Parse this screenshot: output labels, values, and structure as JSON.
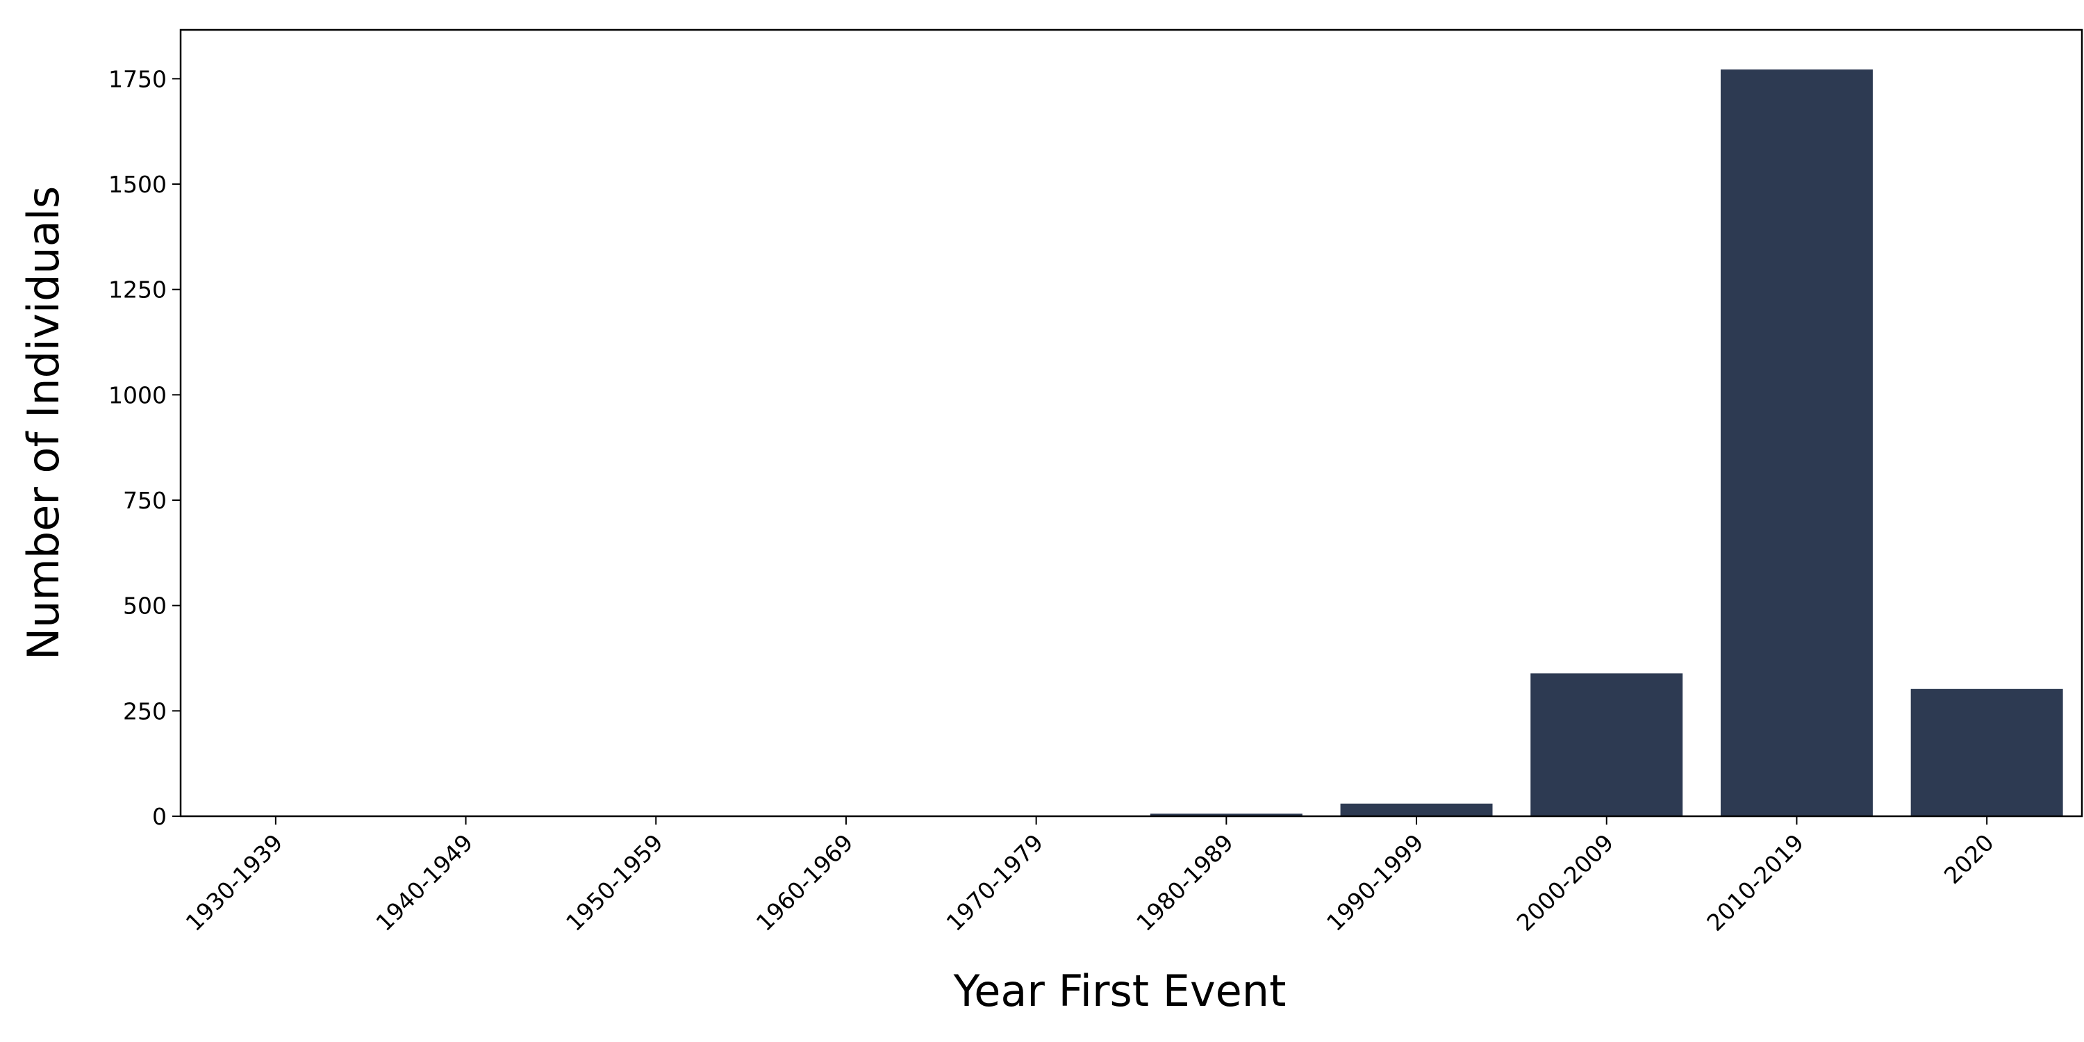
{
  "chart_data": {
    "type": "bar",
    "x_label": "Year First Event",
    "y_label": "Number of Individuals",
    "categories": [
      "1930-1939",
      "1940-1949",
      "1950-1959",
      "1960-1969",
      "1970-1979",
      "1980-1989",
      "1990-1999",
      "2000-2009",
      "2010-2019",
      "2020"
    ],
    "values": [
      0,
      0,
      0,
      0,
      1,
      6,
      30,
      339,
      1772,
      302
    ],
    "color": "#2d3a52",
    "ylim": [
      0,
      1866
    ],
    "yticks": [
      0,
      250,
      500,
      750,
      1000,
      1250,
      1500,
      1750
    ],
    "grid": false
  }
}
